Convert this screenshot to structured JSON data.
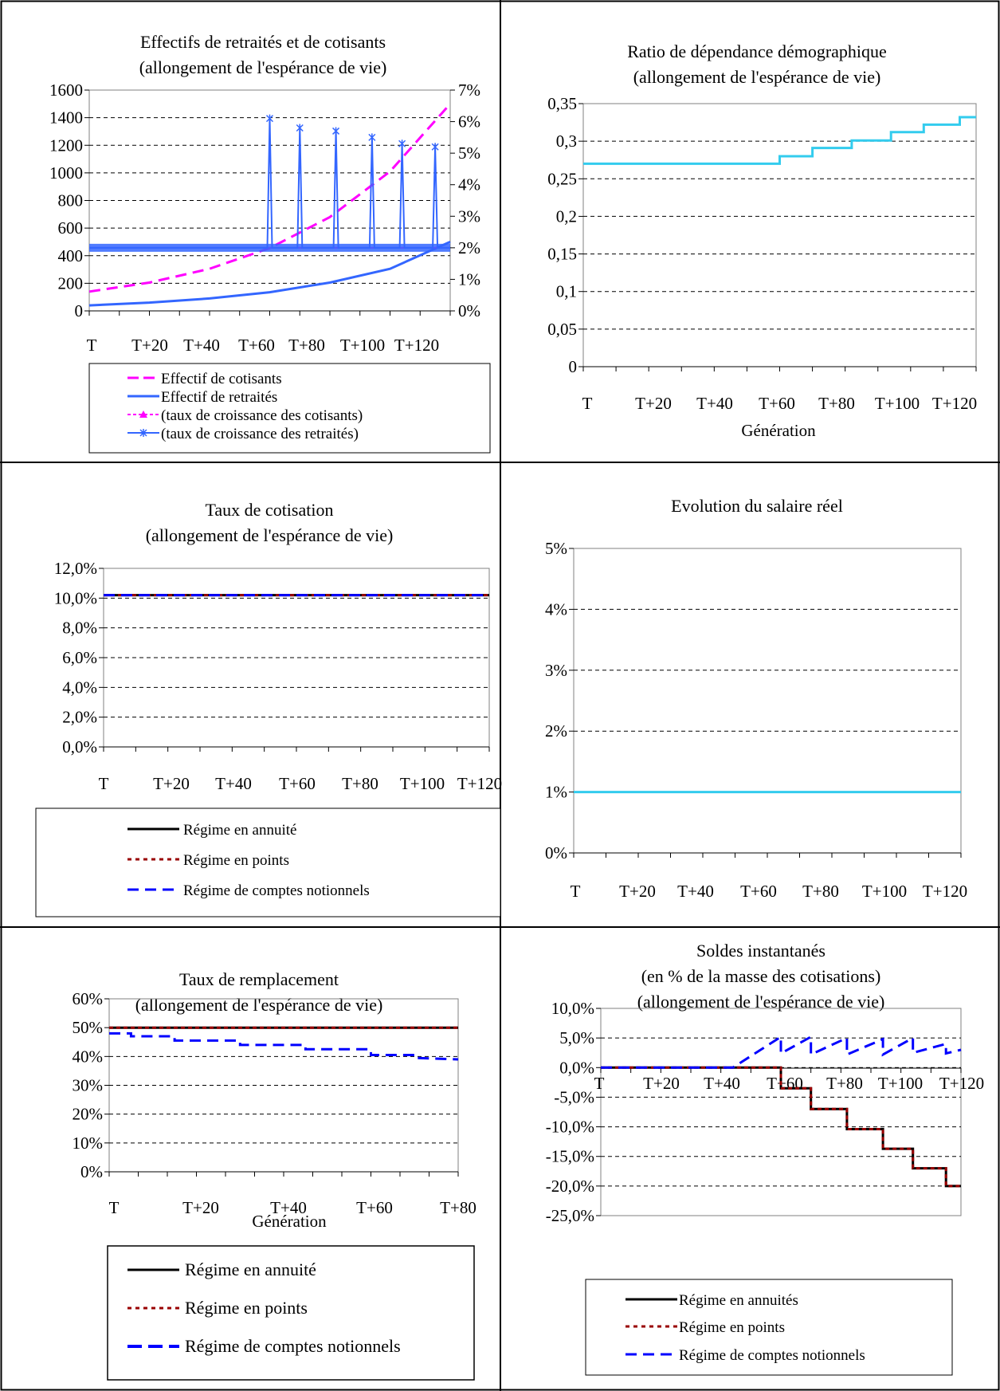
{
  "colors": {
    "cotisants": "#ff00ff",
    "retraites": "#3366ff",
    "cyan": "#33ccee",
    "black": "#000000",
    "points": "#990000",
    "notionnels": "#0000ff",
    "grid": "#000000"
  },
  "charts": [
    {
      "id": "effectifs",
      "title": [
        "Effectifs de retraités et de cotisants",
        "(allongement de l'espérance de vie)"
      ],
      "xticks": [
        "T",
        "T+20",
        "T+40",
        "T+60",
        "T+80",
        "T+100",
        "T+120"
      ],
      "yticks_left": [
        "0",
        "200",
        "400",
        "600",
        "800",
        "1000",
        "1200",
        "1400",
        "1600"
      ],
      "yticks_right": [
        "0%",
        "1%",
        "2%",
        "3%",
        "4%",
        "5%",
        "6%",
        "7%"
      ],
      "legend": [
        "Effectif de cotisants",
        "Effectif de retraités",
        "(taux de croissance des cotisants)",
        "(taux de croissance des retraités)"
      ]
    },
    {
      "id": "ratio",
      "title": [
        "Ratio de dépendance démographique",
        "(allongement de l'espérance de vie)"
      ],
      "xticks": [
        "T",
        "T+20",
        "T+40",
        "T+60",
        "T+80",
        "T+100",
        "T+120"
      ],
      "yticks": [
        "0",
        "0,05",
        "0,1",
        "0,15",
        "0,2",
        "0,25",
        "0,3",
        "0,35"
      ],
      "xlabel": "Génération"
    },
    {
      "id": "cotisation",
      "title": [
        "Taux de cotisation",
        "(allongement de l'espérance de vie)"
      ],
      "xticks": [
        "T",
        "T+20",
        "T+40",
        "T+60",
        "T+80",
        "T+100",
        "T+120"
      ],
      "yticks": [
        "0,0%",
        "2,0%",
        "4,0%",
        "6,0%",
        "8,0%",
        "10,0%",
        "12,0%"
      ],
      "legend": [
        "Régime en annuité",
        "Régime en points",
        "Régime de comptes notionnels"
      ]
    },
    {
      "id": "salaire",
      "title": [
        "Evolution du salaire réel"
      ],
      "xticks": [
        "T",
        "T+20",
        "T+40",
        "T+60",
        "T+80",
        "T+100",
        "T+120"
      ],
      "yticks": [
        "0%",
        "1%",
        "2%",
        "3%",
        "4%",
        "5%"
      ]
    },
    {
      "id": "remplacement",
      "title": [
        "Taux de remplacement",
        "(allongement de l'espérance de vie)"
      ],
      "xticks": [
        "T",
        "T+20",
        "T+40",
        "T+60",
        "T+80"
      ],
      "yticks": [
        "0%",
        "10%",
        "20%",
        "30%",
        "40%",
        "50%",
        "60%"
      ],
      "xlabel": "Génération",
      "legend": [
        "Régime en annuité",
        "Régime en points",
        "Régime de comptes notionnels"
      ]
    },
    {
      "id": "soldes",
      "title": [
        "Soldes instantanés",
        "(en % de la masse des cotisations)",
        "(allongement de l'espérance de vie)"
      ],
      "xticks": [
        "T",
        "T+20",
        "T+40",
        "T+60",
        "T+80",
        "T+100",
        "T+120"
      ],
      "yticks": [
        "-25,0%",
        "-20,0%",
        "-15,0%",
        "-10,0%",
        "-5,0%",
        "0,0%",
        "5,0%",
        "10,0%"
      ],
      "legend": [
        "Régime en annuités",
        "Régime en points",
        "Régime de comptes notionnels"
      ]
    }
  ],
  "chart_data": [
    {
      "type": "line",
      "title": "Effectifs de retraités et de cotisants (allongement de l'espérance de vie)",
      "x_range": [
        0,
        120
      ],
      "ylim_left": [
        0,
        1600
      ],
      "ylim_right": [
        0,
        0.07
      ],
      "grid": true,
      "legend": "bottom",
      "series": [
        {
          "name": "Effectif de cotisants",
          "axis": "left",
          "x": [
            0,
            20,
            40,
            60,
            80,
            100,
            120
          ],
          "values": [
            140,
            205,
            305,
            455,
            680,
            1010,
            1500
          ]
        },
        {
          "name": "Effectif de retraités",
          "axis": "left",
          "x": [
            0,
            20,
            40,
            60,
            80,
            100,
            120
          ],
          "values": [
            40,
            60,
            90,
            135,
            205,
            305,
            500
          ]
        },
        {
          "name": "(taux de croissance des cotisants)",
          "axis": "right",
          "x": [
            0,
            120
          ],
          "values": [
            0.02,
            0.02
          ]
        },
        {
          "name": "(taux de croissance des retraités)",
          "axis": "right",
          "x": [
            0,
            60,
            70,
            82,
            94,
            104,
            115,
            120
          ],
          "values": [
            0.02,
            0.02,
            0.02,
            0.02,
            0.02,
            0.02,
            0.02,
            0.02
          ],
          "spikes": [
            [
              60,
              0.061
            ],
            [
              70,
              0.058
            ],
            [
              82,
              0.057
            ],
            [
              94,
              0.055
            ],
            [
              104,
              0.053
            ],
            [
              115,
              0.052
            ]
          ]
        }
      ]
    },
    {
      "type": "line",
      "title": "Ratio de dépendance démographique (allongement de l'espérance de vie)",
      "xlabel": "Génération",
      "x_range": [
        0,
        120
      ],
      "ylim": [
        0,
        0.35
      ],
      "grid": true,
      "series": [
        {
          "name": "",
          "x": [
            0,
            60,
            60,
            70,
            70,
            82,
            82,
            94,
            94,
            104,
            104,
            115,
            115,
            120
          ],
          "values": [
            0.27,
            0.27,
            0.28,
            0.28,
            0.291,
            0.291,
            0.301,
            0.301,
            0.312,
            0.312,
            0.322,
            0.322,
            0.332,
            0.332
          ]
        }
      ]
    },
    {
      "type": "line",
      "title": "Taux de cotisation (allongement de l'espérance de vie)",
      "x_range": [
        0,
        120
      ],
      "ylim": [
        0,
        0.12
      ],
      "grid": true,
      "legend": "bottom",
      "series": [
        {
          "name": "Régime en annuité",
          "x": [
            0,
            120
          ],
          "values": [
            0.102,
            0.102
          ]
        },
        {
          "name": "Régime en points",
          "x": [
            0,
            120
          ],
          "values": [
            0.102,
            0.102
          ]
        },
        {
          "name": "Régime de comptes notionnels",
          "x": [
            0,
            120
          ],
          "values": [
            0.102,
            0.102
          ]
        }
      ]
    },
    {
      "type": "line",
      "title": "Evolution du salaire réel",
      "x_range": [
        0,
        120
      ],
      "ylim": [
        0,
        0.05
      ],
      "grid": true,
      "series": [
        {
          "name": "",
          "x": [
            0,
            120
          ],
          "values": [
            0.01,
            0.01
          ]
        }
      ]
    },
    {
      "type": "line",
      "title": "Taux de remplacement (allongement de l'espérance de vie)",
      "xlabel": "Génération",
      "x_range": [
        0,
        80
      ],
      "ylim": [
        0,
        0.6
      ],
      "grid": true,
      "legend": "bottom",
      "series": [
        {
          "name": "Régime en annuité",
          "x": [
            0,
            20,
            40,
            60,
            80
          ],
          "values": [
            0.5,
            0.5,
            0.5,
            0.5,
            0.5
          ]
        },
        {
          "name": "Régime en points",
          "x": [
            0,
            20,
            40,
            60,
            80
          ],
          "values": [
            0.5,
            0.5,
            0.5,
            0.5,
            0.5
          ]
        },
        {
          "name": "Régime de comptes notionnels",
          "x": [
            0,
            5,
            5,
            15,
            15,
            30,
            30,
            45,
            45,
            60,
            60,
            70,
            70,
            80
          ],
          "values": [
            0.48,
            0.48,
            0.47,
            0.47,
            0.455,
            0.455,
            0.44,
            0.44,
            0.425,
            0.425,
            0.405,
            0.405,
            0.395,
            0.39
          ]
        }
      ]
    },
    {
      "type": "line",
      "title": "Soldes instantanés (en % de la masse des cotisations) (allongement de l'espérance de vie)",
      "x_range": [
        0,
        120
      ],
      "ylim": [
        -0.25,
        0.1
      ],
      "grid": true,
      "legend": "bottom",
      "series": [
        {
          "name": "Régime en annuités",
          "x": [
            0,
            60,
            60,
            70,
            70,
            82,
            82,
            94,
            94,
            104,
            104,
            115,
            115,
            120
          ],
          "values": [
            0,
            0,
            -0.035,
            -0.035,
            -0.07,
            -0.07,
            -0.104,
            -0.104,
            -0.137,
            -0.137,
            -0.17,
            -0.17,
            -0.2,
            -0.2
          ]
        },
        {
          "name": "Régime en points",
          "x": [
            0,
            60,
            60,
            70,
            70,
            82,
            82,
            94,
            94,
            104,
            104,
            115,
            115,
            120
          ],
          "values": [
            0,
            0,
            -0.035,
            -0.035,
            -0.07,
            -0.07,
            -0.104,
            -0.104,
            -0.137,
            -0.137,
            -0.17,
            -0.17,
            -0.2,
            -0.2
          ]
        },
        {
          "name": "Régime de comptes notionnels",
          "x": [
            0,
            44,
            60,
            60,
            70,
            70,
            82,
            82,
            94,
            94,
            104,
            104,
            115,
            115,
            120
          ],
          "values": [
            0,
            0,
            0.052,
            0.024,
            0.052,
            0.022,
            0.05,
            0.022,
            0.048,
            0.022,
            0.05,
            0.025,
            0.04,
            0.024,
            0.03
          ]
        }
      ]
    }
  ]
}
